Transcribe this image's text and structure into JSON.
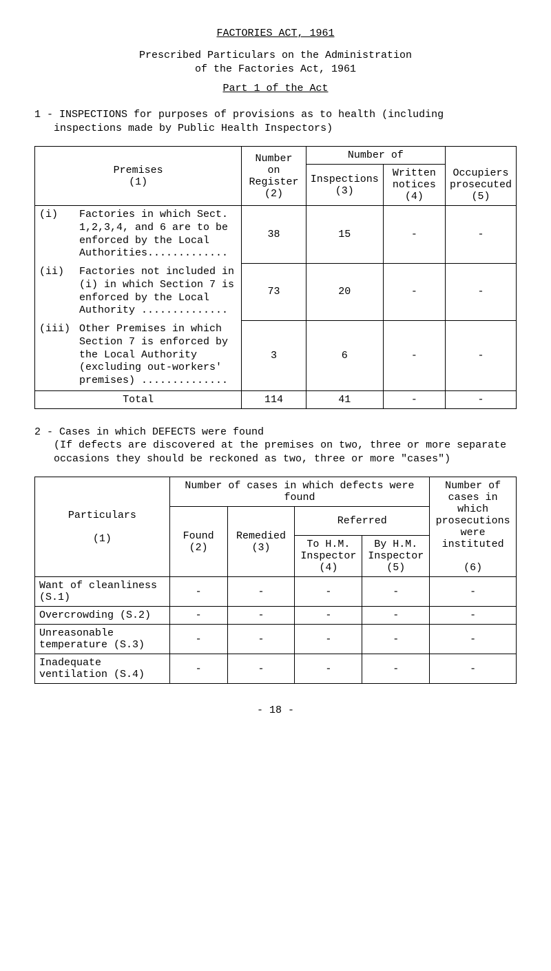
{
  "title": "FACTORIES  ACT,  1961",
  "subtitle_line1": "Prescribed Particulars on the Administration",
  "subtitle_line2": "of the Factories Act, 1961",
  "part_heading": "Part 1 of the Act",
  "section1_intro": "1 - INSPECTIONS for purposes of provisions as to health (including inspections made by Public Health Inspectors)",
  "table1": {
    "headers": {
      "premises": "Premises",
      "premises_col": "(1)",
      "number_on_register": "Number on Register",
      "number_on_register_col": "(2)",
      "number_of": "Number of",
      "inspections": "Inspections",
      "inspections_col": "(3)",
      "written_notices": "Written notices",
      "written_notices_col": "(4)",
      "occupiers": "Occupiers prosecuted",
      "occupiers_col": "(5)"
    },
    "rows": [
      {
        "roman": "(i)",
        "desc": "Factories in which Sect. 1,2,3,4, and 6 are to be enforced by the Local Authorities.............",
        "register": "38",
        "inspections": "15",
        "notices": "-",
        "occupiers": "-"
      },
      {
        "roman": "(ii)",
        "desc": "Factories not included in (i) in which Section 7 is enforced by the Local Authority  ..............",
        "register": "73",
        "inspections": "20",
        "notices": "-",
        "occupiers": "-"
      },
      {
        "roman": "(iii)",
        "desc": "Other Premises in which Section 7 is enforced by the Local Authority (excluding out-workers' premises)  ..............",
        "register": "3",
        "inspections": "6",
        "notices": "-",
        "occupiers": "-"
      }
    ],
    "total_label": "Total",
    "total": {
      "register": "114",
      "inspections": "41",
      "notices": "-",
      "occupiers": "-"
    }
  },
  "section2_intro": "2 - Cases in which DEFECTS were found\n(If defects are discovered at the premises on two, three or more separate occasions they should be reckoned as two, three or more \"cases\")",
  "table2": {
    "headers": {
      "particulars": "Particulars",
      "particulars_col": "(1)",
      "cases_heading": "Number of cases in which defects were found",
      "found": "Found",
      "found_col": "(2)",
      "remedied": "Remedied",
      "remedied_col": "(3)",
      "referred": "Referred",
      "to_hm": "To H.M. Inspector",
      "to_hm_col": "(4)",
      "by_hm": "By H.M. Inspector",
      "by_hm_col": "(5)",
      "prosecutions": "Number of cases in which prosecutions were instituted",
      "prosecutions_col": "(6)"
    },
    "rows": [
      {
        "label": "Want of cleanliness (S.1)",
        "found": "-",
        "remedied": "-",
        "to_hm": "-",
        "by_hm": "-",
        "pros": "-"
      },
      {
        "label": "Overcrowding (S.2)",
        "found": "-",
        "remedied": "-",
        "to_hm": "-",
        "by_hm": "-",
        "pros": "-"
      },
      {
        "label": "Unreasonable temperature (S.3)",
        "found": "-",
        "remedied": "-",
        "to_hm": "-",
        "by_hm": "-",
        "pros": "-"
      },
      {
        "label": "Inadequate ventilation (S.4)",
        "found": "-",
        "remedied": "-",
        "to_hm": "-",
        "by_hm": "-",
        "pros": "-"
      }
    ]
  },
  "page_number": "- 18 -"
}
